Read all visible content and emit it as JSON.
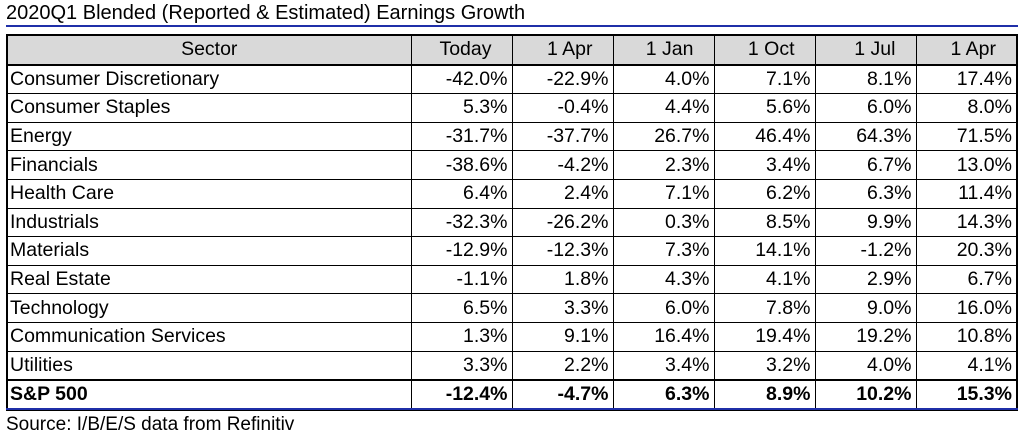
{
  "title": "2020Q1 Blended (Reported & Estimated) Earnings Growth",
  "source": "Source: I/B/E/S data from Refinitiv",
  "table": {
    "headers": [
      "Sector",
      "Today",
      "1 Apr",
      "1 Jan",
      "1 Oct",
      "1 Jul",
      "1 Apr"
    ],
    "rows": [
      [
        "Consumer Discretionary",
        "-42.0%",
        "-22.9%",
        "4.0%",
        "7.1%",
        "8.1%",
        "17.4%"
      ],
      [
        "Consumer Staples",
        "5.3%",
        "-0.4%",
        "4.4%",
        "5.6%",
        "6.0%",
        "8.0%"
      ],
      [
        "Energy",
        "-31.7%",
        "-37.7%",
        "26.7%",
        "46.4%",
        "64.3%",
        "71.5%"
      ],
      [
        "Financials",
        "-38.6%",
        "-4.2%",
        "2.3%",
        "3.4%",
        "6.7%",
        "13.0%"
      ],
      [
        "Health Care",
        "6.4%",
        "2.4%",
        "7.1%",
        "6.2%",
        "6.3%",
        "11.4%"
      ],
      [
        "Industrials",
        "-32.3%",
        "-26.2%",
        "0.3%",
        "8.5%",
        "9.9%",
        "14.3%"
      ],
      [
        "Materials",
        "-12.9%",
        "-12.3%",
        "7.3%",
        "14.1%",
        "-1.2%",
        "20.3%"
      ],
      [
        "Real Estate",
        "-1.1%",
        "1.8%",
        "4.3%",
        "4.1%",
        "2.9%",
        "6.7%"
      ],
      [
        "Technology",
        "6.5%",
        "3.3%",
        "6.0%",
        "7.8%",
        "9.0%",
        "16.0%"
      ],
      [
        "Communication Services",
        "1.3%",
        "9.1%",
        "16.4%",
        "19.4%",
        "19.2%",
        "10.8%"
      ],
      [
        "Utilities",
        "3.3%",
        "2.2%",
        "3.4%",
        "3.2%",
        "4.0%",
        "4.1%"
      ]
    ],
    "total": [
      "S&P 500",
      "-12.4%",
      "-4.7%",
      "6.3%",
      "8.9%",
      "10.2%",
      "15.3%"
    ]
  },
  "colors": {
    "header_bg": "#d9d9d9",
    "rule": "#1f2fa8"
  }
}
